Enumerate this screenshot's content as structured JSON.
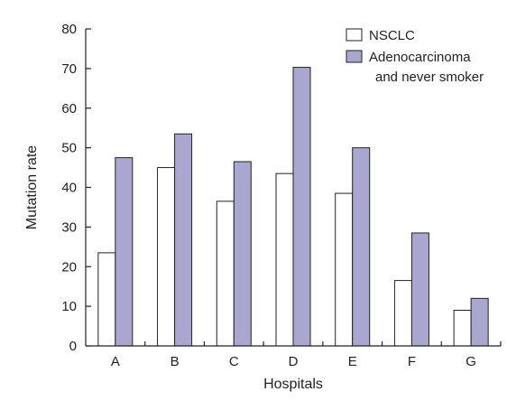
{
  "chart_data": {
    "type": "bar",
    "title": "",
    "xlabel": "Hospitals",
    "ylabel": "Mutation rate",
    "ylim": [
      0,
      80
    ],
    "yticks": [
      0,
      10,
      20,
      30,
      40,
      50,
      60,
      70,
      80
    ],
    "categories": [
      "A",
      "B",
      "C",
      "D",
      "E",
      "F",
      "G"
    ],
    "series": [
      {
        "name": "NSCLC",
        "values": [
          23.5,
          45,
          36.5,
          43.5,
          38.5,
          16.5,
          9
        ],
        "color": "#ffffff"
      },
      {
        "name": "Adenocarcinoma and never smoker",
        "legend_lines": [
          "Adenocarcinoma",
          "and never smoker"
        ],
        "values": [
          47.5,
          53.5,
          46.5,
          70.3,
          50,
          28.5,
          12
        ],
        "color": "#a9a7cf"
      }
    ],
    "legend": "top-right",
    "grid": false
  }
}
